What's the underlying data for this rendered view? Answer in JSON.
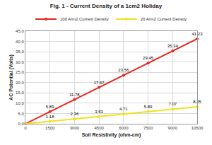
{
  "chart_data": {
    "type": "line",
    "title": "Fig. 1 - Current Density of a 1cm2 Holiday",
    "x_label": "Soil Resistivity (ohm-cm)",
    "y_label": "AC Potential (Volts)",
    "x": [
      0,
      1500,
      3000,
      4500,
      6000,
      7500,
      9000,
      10500
    ],
    "series": [
      {
        "name": "100 A/m2 Current Density",
        "color": "#e8241c",
        "marker": "circle",
        "values": [
          0,
          5.89,
          11.78,
          17.67,
          23.56,
          29.45,
          35.34,
          41.23
        ],
        "value_labels": [
          null,
          "5.89",
          "11.78",
          "17.67",
          "23.56",
          "29.45",
          "35.34",
          "41.23"
        ]
      },
      {
        "name": "20 A/m2 Current Density",
        "color": "#f0e11c",
        "marker": "circle",
        "values": [
          0,
          1.18,
          2.36,
          3.53,
          4.71,
          5.89,
          7.07,
          8.25
        ],
        "value_labels": [
          null,
          "1.18",
          "2.36",
          "3.53",
          "4.71",
          "5.89",
          "7.07",
          "8.25"
        ]
      }
    ],
    "xlim": [
      0,
      10500
    ],
    "xticks": [
      0,
      1500,
      3000,
      4500,
      6000,
      7500,
      9000,
      10500
    ],
    "ylim": [
      0,
      45
    ],
    "yticks": [
      {
        "value": 0,
        "label": "0.0"
      },
      {
        "value": 5,
        "label": "5.0"
      },
      {
        "value": 10,
        "label": "10.0"
      },
      {
        "value": 15,
        "label": "15.0"
      },
      {
        "value": 20,
        "label": "20.0"
      },
      {
        "value": 25,
        "label": "25.0"
      },
      {
        "value": 30,
        "label": "30.0"
      },
      {
        "value": 35,
        "label": "35.0"
      },
      {
        "value": 40,
        "label": "40.0"
      },
      {
        "value": 45,
        "label": "45.0"
      }
    ],
    "grid": true,
    "legend": "top",
    "data_labels": true
  }
}
